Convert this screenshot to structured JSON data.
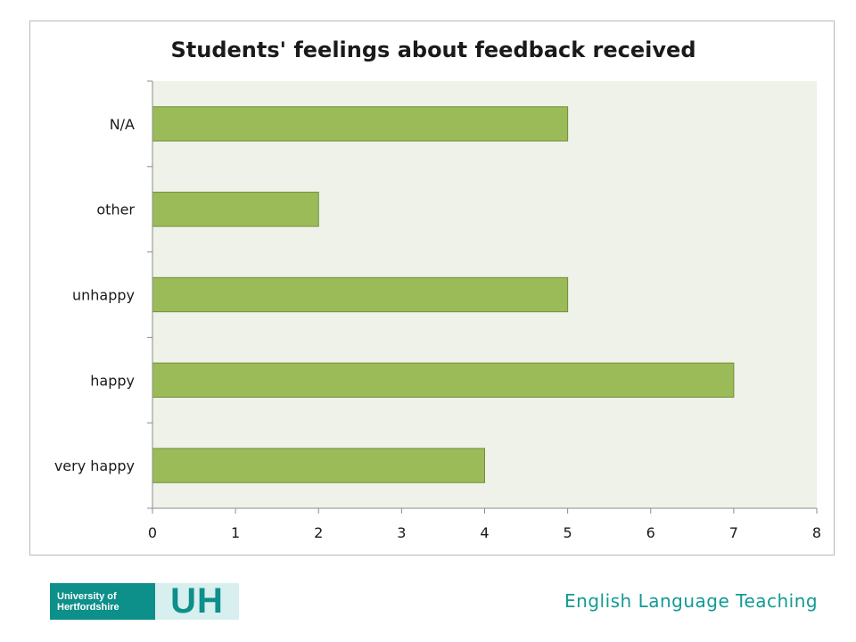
{
  "chart_data": {
    "type": "bar",
    "orientation": "horizontal",
    "title": "Students' feelings about feedback received",
    "categories": [
      "very happy",
      "happy",
      "unhappy",
      "other",
      "N/A"
    ],
    "values": [
      4,
      7,
      5,
      2,
      5
    ],
    "xlim": [
      0,
      8
    ],
    "x_ticks": [
      0,
      1,
      2,
      3,
      4,
      5,
      6,
      7,
      8
    ],
    "xlabel": "",
    "ylabel": "",
    "grid": false,
    "legend": "none",
    "bar_color": "#9bbb59",
    "plot_background": "#eff2e8"
  },
  "footer": {
    "logo_text_line1": "University of",
    "logo_text_line2": "Hertfordshire",
    "logo_mark": "UH",
    "subtitle": "English Language Teaching"
  },
  "colors": {
    "accent": "#139a94"
  }
}
